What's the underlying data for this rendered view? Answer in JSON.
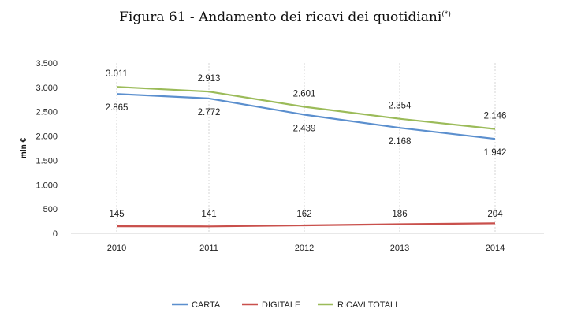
{
  "chart_data": {
    "type": "line",
    "title": "Figura 61 - Andamento dei ricavi dei quotidiani",
    "title_superscript": "(*)",
    "ylabel": "mln €",
    "xlabel": "",
    "categories": [
      "2010",
      "2011",
      "2012",
      "2013",
      "2014"
    ],
    "ylim": [
      0,
      3500
    ],
    "yticks": [
      0,
      500,
      1000,
      1500,
      2000,
      2500,
      3000,
      3500
    ],
    "ytick_labels": [
      "0",
      "500",
      "1.000",
      "1.500",
      "2.000",
      "2.500",
      "3.000",
      "3.500"
    ],
    "grid": "vertical dashed",
    "legend_position": "bottom",
    "series": [
      {
        "name": "CARTA",
        "color": "#5b8fce",
        "values": [
          2865,
          2772,
          2439,
          2168,
          1942
        ],
        "labels": [
          "2.865",
          "2.772",
          "2.439",
          "2.168",
          "1.942"
        ],
        "label_position": "below"
      },
      {
        "name": "DIGITALE",
        "color": "#c9504c",
        "values": [
          145,
          141,
          162,
          186,
          204
        ],
        "labels": [
          "145",
          "141",
          "162",
          "186",
          "204"
        ],
        "label_position": "above"
      },
      {
        "name": "RICAVI TOTALI",
        "color": "#9bbb59",
        "values": [
          3011,
          2913,
          2601,
          2354,
          2146
        ],
        "labels": [
          "3.011",
          "2.913",
          "2.601",
          "2.354",
          "2.146"
        ],
        "label_position": "above"
      }
    ]
  }
}
